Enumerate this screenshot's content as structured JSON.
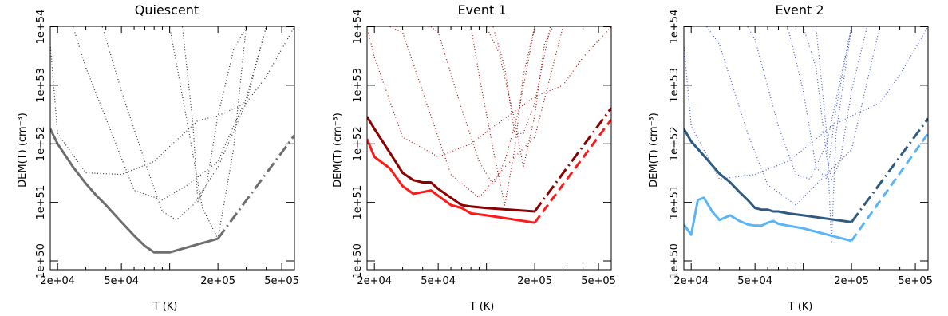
{
  "chart_data": [
    {
      "type": "line",
      "title": "Quiescent",
      "xlabel": "T (K)",
      "ylabel": "DEM(T) (cm⁻³)",
      "x_scale": "log",
      "y_scale": "log",
      "xlim": [
        18000,
        600000
      ],
      "ylim": [
        1e+50,
        1e+54
      ],
      "x_ticks": [
        "2e+04",
        "5e+04",
        "2e+05",
        "5e+05"
      ],
      "x_tick_values": [
        20000,
        50000,
        200000,
        500000
      ],
      "y_ticks": [
        "1e+50",
        "1e+51",
        "1e+52",
        "1e+53",
        "1e+54"
      ],
      "y_tick_values": [
        1e+50,
        1e+51,
        1e+52,
        1e+53,
        1e+54
      ],
      "colors": {
        "solid": "#6e6e6e",
        "dotted": "#333333"
      },
      "series": [
        {
          "style": "solid",
          "color": "#6e6e6e",
          "x": [
            18000,
            20000,
            25000,
            30000,
            35000,
            40000,
            50000,
            60000,
            70000,
            80000,
            100000,
            200000
          ],
          "y": [
            1.8e+52,
            1e+52,
            4e+51,
            2.1e+51,
            1.3e+51,
            9e+50,
            4.6e+50,
            2.7e+50,
            1.8e+50,
            1.4e+50,
            1.4e+50,
            2.4e+50
          ]
        },
        {
          "style": "dashdot",
          "color": "#6e6e6e",
          "x": [
            200000,
            600000
          ],
          "y": [
            2.4e+50,
            1.4e+52
          ]
        },
        {
          "style": "dotted",
          "color": "#333333",
          "x": [
            18000,
            20000,
            30000,
            50000,
            80000,
            100000,
            150000,
            200000,
            300000,
            400000,
            600000
          ],
          "y": [
            5e+53,
            1.5e+52,
            3.2e+51,
            3e+51,
            5e+51,
            9e+51,
            2.5e+52,
            3e+52,
            5e+52,
            1.4e+53,
            1e+54
          ]
        },
        {
          "style": "dotted",
          "color": "#333333",
          "x": [
            25000,
            30000,
            45000,
            60000,
            90000,
            130000,
            200000,
            300000,
            400000
          ],
          "y": [
            1e+54,
            2e+53,
            1.2e+52,
            1.6e+51,
            1.1e+51,
            2e+51,
            5e+51,
            6e+52,
            1e+54
          ]
        },
        {
          "style": "dotted",
          "color": "#333333",
          "x": [
            38000,
            50000,
            70000,
            90000,
            110000,
            140000,
            200000,
            300000,
            400000
          ],
          "y": [
            1e+54,
            8e+52,
            5e+51,
            7e+50,
            5e+50,
            9e+50,
            4e+51,
            5e+52,
            1e+54
          ]
        },
        {
          "style": "dotted",
          "color": "#333333",
          "x": [
            100000,
            130000,
            160000,
            200000,
            250000,
            300000
          ],
          "y": [
            1e+54,
            2e+52,
            8e+50,
            2.4e+50,
            8e+51,
            1e+54
          ]
        },
        {
          "style": "dotted",
          "color": "#333333",
          "x": [
            120000,
            140000,
            150000,
            170000,
            200000,
            250000,
            300000
          ],
          "y": [
            1e+54,
            2e+52,
            1e+51,
            2e+51,
            3e+52,
            4e+53,
            1e+54
          ]
        }
      ]
    },
    {
      "type": "line",
      "title": "Event 1",
      "xlabel": "T (K)",
      "ylabel": "DEM(T) (cm⁻³)",
      "x_scale": "log",
      "y_scale": "log",
      "xlim": [
        18000,
        600000
      ],
      "ylim": [
        1e+50,
        1e+54
      ],
      "x_ticks": [
        "2e+04",
        "5e+04",
        "2e+05",
        "5e+05"
      ],
      "x_tick_values": [
        20000,
        50000,
        200000,
        500000
      ],
      "y_ticks": [
        "1e+50",
        "1e+51",
        "1e+52",
        "1e+53",
        "1e+54"
      ],
      "y_tick_values": [
        1e+50,
        1e+51,
        1e+52,
        1e+53,
        1e+54
      ],
      "colors": {
        "solid_dark": "#8b0000",
        "solid_light": "#ff1a1a",
        "dotted": "#a01010"
      },
      "series": [
        {
          "style": "solid",
          "color": "#8b0000",
          "x": [
            18000,
            20000,
            25000,
            30000,
            35000,
            40000,
            45000,
            50000,
            60000,
            70000,
            80000,
            100000,
            200000
          ],
          "y": [
            2.9e+52,
            1.8e+52,
            7e+51,
            3.2e+51,
            2.4e+51,
            2.2e+51,
            2.2e+51,
            1.7e+51,
            1.2e+51,
            9e+50,
            8.5e+50,
            8e+50,
            7e+50
          ]
        },
        {
          "style": "solid",
          "color": "#ff1a1a",
          "x": [
            18000,
            20000,
            25000,
            30000,
            35000,
            40000,
            45000,
            50000,
            60000,
            70000,
            80000,
            100000,
            200000
          ],
          "y": [
            1.2e+52,
            6e+51,
            3.8e+51,
            1.9e+51,
            1.4e+51,
            1.5e+51,
            1.6e+51,
            1.3e+51,
            9e+50,
            8e+50,
            6.5e+50,
            6e+50,
            4.5e+50
          ]
        },
        {
          "style": "dashdot",
          "color": "#8b0000",
          "x": [
            200000,
            600000
          ],
          "y": [
            7e+50,
            4.1e+52
          ]
        },
        {
          "style": "dashed",
          "color": "#ff1a1a",
          "x": [
            200000,
            600000
          ],
          "y": [
            4.5e+50,
            2.6e+52
          ]
        },
        {
          "style": "dotted",
          "color": "#a01010",
          "x": [
            18000,
            20000,
            30000,
            50000,
            80000,
            100000,
            150000,
            200000,
            300000,
            400000,
            600000
          ],
          "y": [
            1e+54,
            3e+53,
            1.3e+52,
            6e+51,
            1e+52,
            1.6e+52,
            3.6e+52,
            6.4e+52,
            1e+53,
            3e+53,
            1e+54
          ]
        },
        {
          "style": "dotted",
          "color": "#a01010",
          "x": [
            25000,
            30000,
            45000,
            60000,
            90000,
            130000,
            200000,
            300000
          ],
          "y": [
            1e+54,
            8e+53,
            3e+52,
            3e+51,
            1.2e+51,
            4e+51,
            1.3e+52,
            1e+54
          ]
        },
        {
          "style": "dotted",
          "color": "#a01010",
          "x": [
            45000,
            50000,
            70000,
            90000,
            110000,
            130000,
            160000,
            200000
          ],
          "y": [
            1e+54,
            8e+53,
            4e+52,
            5e+51,
            2e+51,
            5e+51,
            4e+52,
            1e+54
          ]
        },
        {
          "style": "dotted",
          "color": "#a01010",
          "x": [
            80000,
            90000,
            110000,
            130000,
            150000,
            170000,
            200000
          ],
          "y": [
            1e+54,
            1.5e+53,
            8e+51,
            9e+50,
            8e+51,
            1.5e+53,
            1e+54
          ]
        },
        {
          "style": "dotted",
          "color": "#a01010",
          "x": [
            100000,
            120000,
            150000,
            170000,
            200000,
            230000,
            260000
          ],
          "y": [
            1e+54,
            3.5e+53,
            2.5e+52,
            4e+51,
            3e+52,
            5e+53,
            1e+54
          ]
        },
        {
          "style": "dotted",
          "color": "#a01010",
          "x": [
            110000,
            130000,
            150000,
            170000,
            200000,
            250000
          ],
          "y": [
            1e+54,
            2e+53,
            1.5e+52,
            1.5e+52,
            5e+52,
            1e+54
          ]
        }
      ]
    },
    {
      "type": "line",
      "title": "Event 2",
      "xlabel": "T (K)",
      "ylabel": "DEM(T) (cm⁻³)",
      "x_scale": "log",
      "y_scale": "log",
      "xlim": [
        18000,
        600000
      ],
      "ylim": [
        1e+50,
        1e+54
      ],
      "x_ticks": [
        "2e+04",
        "5e+04",
        "2e+05",
        "5e+05"
      ],
      "x_tick_values": [
        20000,
        50000,
        200000,
        500000
      ],
      "y_ticks": [
        "1e+50",
        "1e+51",
        "1e+52",
        "1e+53",
        "1e+54"
      ],
      "y_tick_values": [
        1e+50,
        1e+51,
        1e+52,
        1e+53,
        1e+54
      ],
      "colors": {
        "solid_dark": "#2f5a82",
        "solid_light": "#5ab4f5",
        "dotted": "#4a5ac8"
      },
      "series": [
        {
          "style": "solid",
          "color": "#2f5a82",
          "x": [
            18000,
            20000,
            25000,
            30000,
            35000,
            40000,
            45000,
            50000,
            55000,
            60000,
            65000,
            70000,
            80000,
            100000,
            200000
          ],
          "y": [
            1.8e+52,
            1.1e+52,
            5.5e+51,
            3.1e+51,
            2.2e+51,
            1.5e+51,
            1.1e+51,
            8e+50,
            7.5e+50,
            7.5e+50,
            7e+50,
            7e+50,
            6.5e+50,
            6e+50,
            4.6e+50
          ]
        },
        {
          "style": "solid",
          "color": "#5ab4f5",
          "x": [
            18000,
            20000,
            22000,
            24000,
            27000,
            30000,
            35000,
            40000,
            45000,
            50000,
            55000,
            60000,
            65000,
            70000,
            80000,
            100000,
            200000
          ],
          "y": [
            4.2e+50,
            2.8e+50,
            1.1e+51,
            1.2e+51,
            7e+50,
            5e+50,
            6e+50,
            4.8e+50,
            4.2e+50,
            4e+50,
            4e+50,
            4.5e+50,
            4.8e+50,
            4.3e+50,
            4e+50,
            3.6e+50,
            2.2e+50
          ]
        },
        {
          "style": "dashdot",
          "color": "#2f5a82",
          "x": [
            200000,
            600000
          ],
          "y": [
            4.6e+50,
            2.7e+52
          ]
        },
        {
          "style": "dashed",
          "color": "#5ab4f5",
          "x": [
            200000,
            600000
          ],
          "y": [
            2.2e+50,
            1.5e+52
          ]
        },
        {
          "style": "dotted",
          "color": "#4a5ac8",
          "x": [
            18000,
            20000,
            30000,
            50000,
            80000,
            100000,
            150000,
            200000,
            300000,
            400000,
            600000
          ],
          "y": [
            5e+53,
            2e+52,
            2.5e+51,
            3e+51,
            5e+51,
            8e+51,
            2e+52,
            3e+52,
            5e+52,
            1.5e+53,
            1e+54
          ]
        },
        {
          "style": "dotted",
          "color": "#4a5ac8",
          "x": [
            25000,
            30000,
            45000,
            60000,
            90000,
            130000,
            200000,
            300000
          ],
          "y": [
            1e+54,
            5e+53,
            1.5e+52,
            2e+51,
            9e+50,
            2.5e+51,
            8e+51,
            1e+54
          ]
        },
        {
          "style": "dotted",
          "color": "#4a5ac8",
          "x": [
            45000,
            50000,
            70000,
            90000,
            110000,
            140000,
            200000
          ],
          "y": [
            1e+54,
            6e+53,
            2e+52,
            3e+51,
            2.5e+51,
            1e+52,
            1e+54
          ]
        },
        {
          "style": "dotted",
          "color": "#4a5ac8",
          "x": [
            80000,
            100000,
            120000,
            140000,
            160000,
            200000
          ],
          "y": [
            1e+54,
            8e+52,
            4e+51,
            2.5e+51,
            4e+52,
            1e+54
          ]
        },
        {
          "style": "dotted",
          "color": "#4a5ac8",
          "x": [
            100000,
            120000,
            140000,
            150000,
            170000,
            200000,
            250000
          ],
          "y": [
            1e+54,
            2e+53,
            6e+51,
            2.5e+51,
            5e+51,
            8e+52,
            1e+54
          ]
        },
        {
          "style": "dotted",
          "color": "#4a5ac8",
          "x": [
            120000,
            140000,
            150000,
            160000,
            200000
          ],
          "y": [
            1e+54,
            1.5e+52,
            2e+50,
            1.5e+52,
            1e+54
          ]
        }
      ]
    }
  ]
}
